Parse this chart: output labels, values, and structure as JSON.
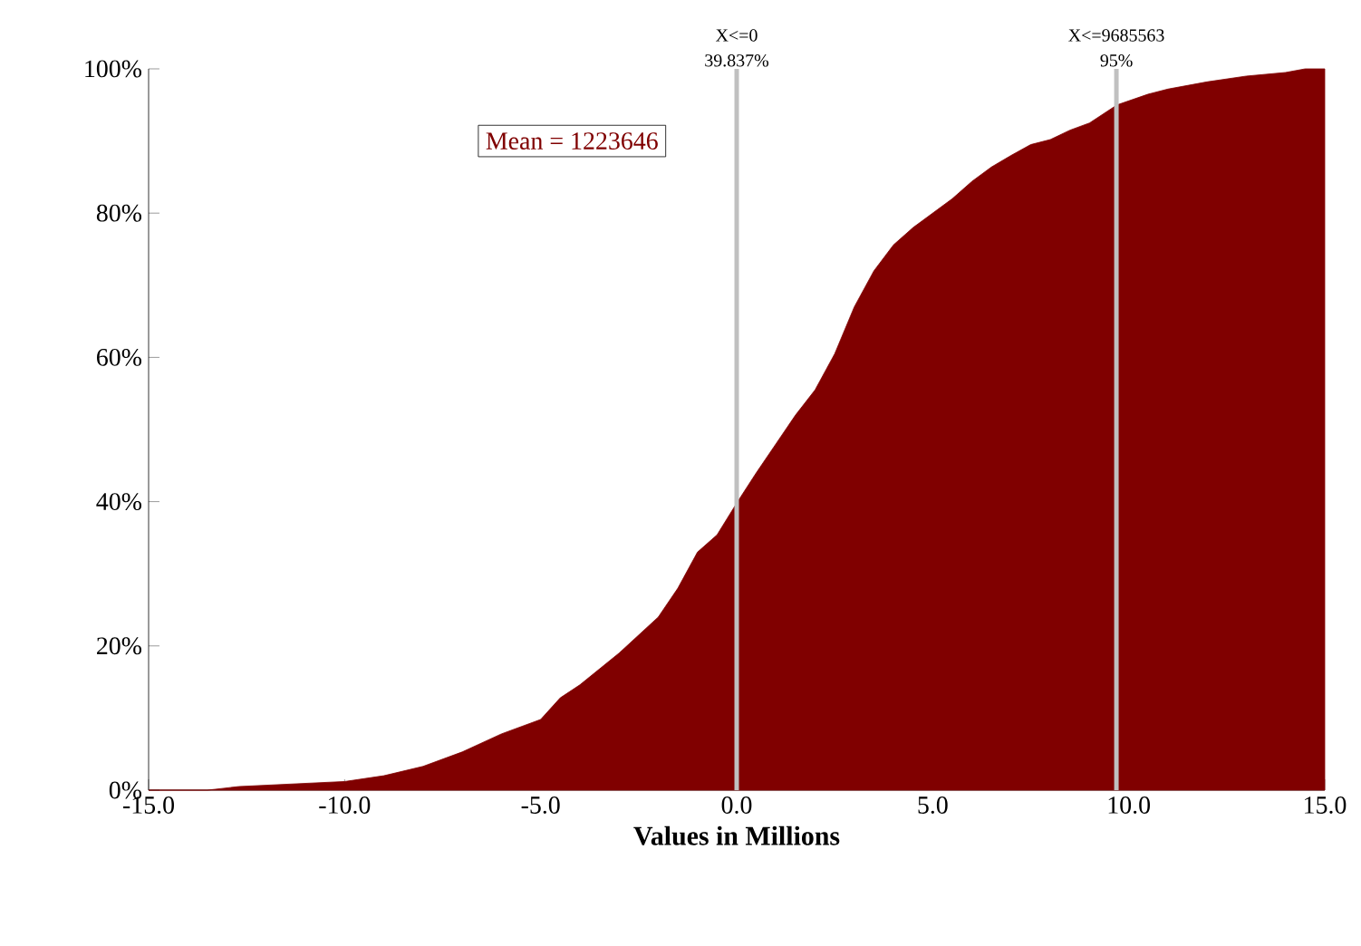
{
  "chart_data": {
    "type": "area",
    "xlabel": "Values in Millions",
    "x": [
      -15,
      -13.5,
      -12.7,
      -10,
      -9,
      -8,
      -7,
      -6,
      -5,
      -4.5,
      -4,
      -3,
      -2,
      -1.5,
      -1,
      -0.5,
      0,
      0.5,
      1,
      1.5,
      2,
      2.5,
      3,
      3.5,
      4,
      4.5,
      5,
      5.5,
      6,
      6.5,
      7,
      7.5,
      8,
      8.5,
      9,
      9.7,
      10.5,
      11,
      12,
      13,
      14,
      14.5,
      15
    ],
    "series": [
      {
        "color": "#800000",
        "values": [
          0,
          0,
          0.5,
          1.2,
          2,
          3.3,
          5.3,
          7.8,
          9.8,
          12.8,
          14.6,
          19,
          24,
          28,
          33,
          35.4,
          39.8,
          44,
          48,
          52,
          55.5,
          60.5,
          67,
          72,
          75.6,
          78,
          80,
          82,
          84.4,
          86.4,
          88,
          89.5,
          90.2,
          91.5,
          92.5,
          95,
          96.5,
          97.2,
          98.2,
          99,
          99.5,
          100,
          100
        ]
      }
    ],
    "xlim": [
      -15,
      15
    ],
    "ylim": [
      0,
      100
    ],
    "xticks": [
      {
        "value": -15,
        "label": "-15.0"
      },
      {
        "value": -10,
        "label": "-10.0"
      },
      {
        "value": -5,
        "label": "-5.0"
      },
      {
        "value": 0,
        "label": "0.0"
      },
      {
        "value": 5,
        "label": "5.0"
      },
      {
        "value": 10,
        "label": "10.0"
      },
      {
        "value": 15,
        "label": "15.0"
      }
    ],
    "yticks": [
      {
        "value": 0,
        "label": "0%"
      },
      {
        "value": 20,
        "label": "20%"
      },
      {
        "value": 40,
        "label": "40%"
      },
      {
        "value": 60,
        "label": "60%"
      },
      {
        "value": 80,
        "label": "80%"
      },
      {
        "value": 100,
        "label": "100%"
      }
    ],
    "ref_lines": [
      {
        "axis": "x",
        "value": 0,
        "label": "X<=0",
        "color": "#c0c0c0"
      },
      {
        "axis": "x",
        "value": 9.685563,
        "label": "X<=9685563",
        "color": "#c0c0c0"
      }
    ],
    "annotations": [
      {
        "text": "39.837%",
        "x": 0,
        "y": 100
      },
      {
        "text": "95%",
        "x": 9.685563,
        "y": 100
      },
      "Mean = 1223646"
    ]
  }
}
